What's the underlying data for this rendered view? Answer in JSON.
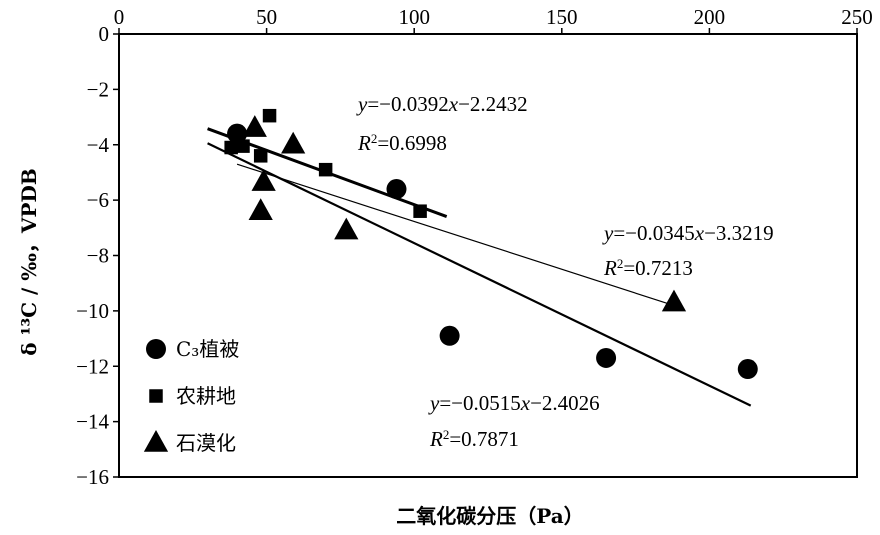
{
  "chart_data": {
    "type": "scatter",
    "xlabel": "二氧化碳分压（Pa）",
    "ylabel": "δ ¹³C / ‰，VPDB",
    "xlim": [
      0,
      250
    ],
    "ylim": [
      -16,
      0
    ],
    "x_ticks": [
      "0",
      "50",
      "100",
      "150",
      "200",
      "250"
    ],
    "y_ticks": [
      "0",
      "−2",
      "−4",
      "−6",
      "−8",
      "−10",
      "−12",
      "−14",
      "−16"
    ],
    "x_tick_values": [
      0,
      50,
      100,
      150,
      200,
      250
    ],
    "y_tick_values": [
      0,
      -2,
      -4,
      -6,
      -8,
      -10,
      -12,
      -14,
      -16
    ],
    "x_axis_position": "top",
    "grid": false,
    "legend_position": "bottom-left",
    "series": [
      {
        "name": "C₃植被",
        "marker": "circle",
        "points": [
          [
            40,
            -3.6
          ],
          [
            94,
            -5.6
          ],
          [
            112,
            -10.9
          ],
          [
            165,
            -11.7
          ],
          [
            213,
            -12.1
          ]
        ]
      },
      {
        "name": "农耕地",
        "marker": "square",
        "points": [
          [
            38,
            -4.1
          ],
          [
            42,
            -4.05
          ],
          [
            48,
            -4.4
          ],
          [
            51,
            -2.95
          ],
          [
            70,
            -4.9
          ],
          [
            102,
            -6.4
          ]
        ]
      },
      {
        "name": "石漠化",
        "marker": "triangle",
        "points": [
          [
            46,
            -3.4
          ],
          [
            49,
            -5.35
          ],
          [
            48,
            -6.4
          ],
          [
            59,
            -4.0
          ],
          [
            77,
            -7.1
          ],
          [
            188,
            -9.7
          ]
        ]
      }
    ],
    "trendlines": [
      {
        "x": [
          30,
          111
        ],
        "slope": -0.0392,
        "intercept": -2.2432,
        "stroke": "bold"
      },
      {
        "x": [
          40,
          190
        ],
        "slope": -0.0345,
        "intercept": -3.3219,
        "stroke": "thin"
      },
      {
        "x": [
          30,
          214
        ],
        "slope": -0.0515,
        "intercept": -2.4026,
        "stroke": "medium"
      }
    ],
    "annotations": [
      {
        "y": "y",
        "eq": "=−0.0392",
        "x": "x",
        "rest": "−2.2432",
        "r2val": "=0.6998"
      },
      {
        "y": "y",
        "eq": "=−0.0345",
        "x": "x",
        "rest": "−3.3219",
        "r2val": "=0.7213"
      },
      {
        "y": "y",
        "eq": "=−0.0515",
        "x": "x",
        "rest": "−2.4026",
        "r2val": "=0.7871"
      }
    ]
  }
}
